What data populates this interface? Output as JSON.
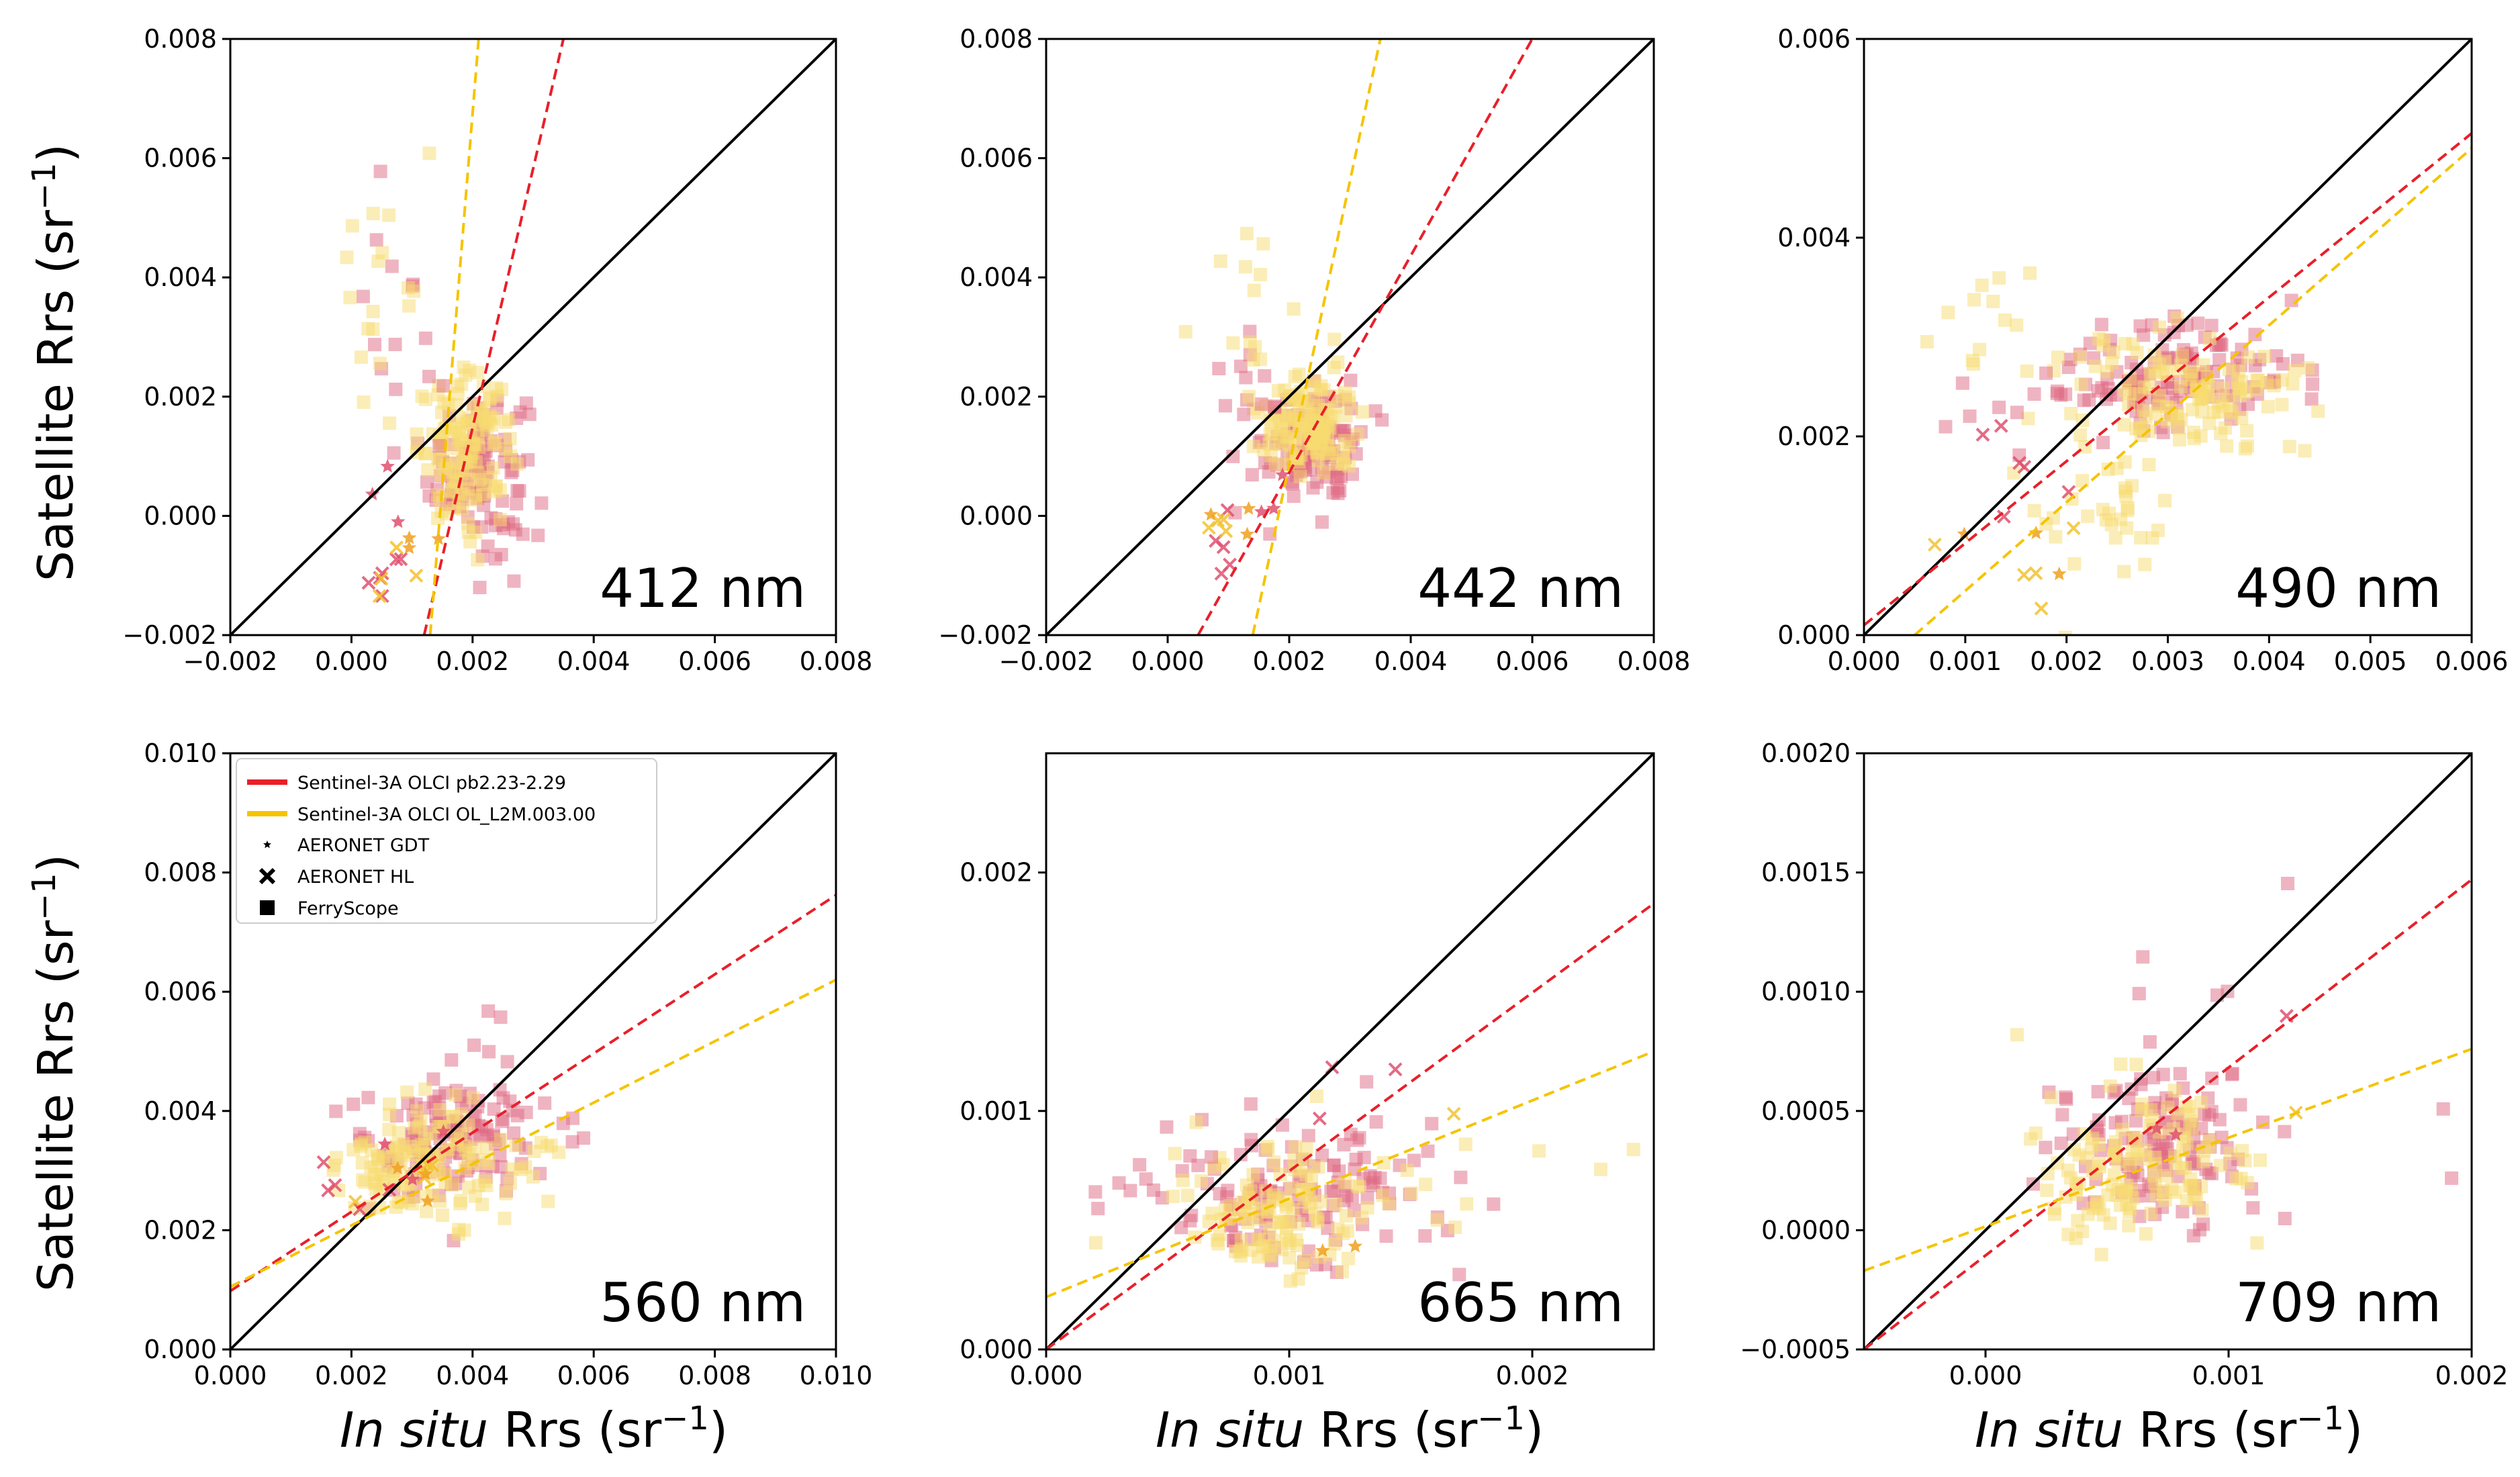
{
  "colors": {
    "red": "#e8202a",
    "yellow": "#f5c400",
    "red_point": "#e06a84",
    "yellow_point": "#f7dc6f",
    "identity": "#000000"
  },
  "labels": {
    "ylabel_main": "Satellite Rrs (sr",
    "ylabel_sup": "−1",
    "ylabel_close": ")",
    "xlabel_italic": "In situ",
    "xlabel_main": " Rrs (sr",
    "xlabel_sup": "−1",
    "xlabel_close": ")"
  },
  "legend": {
    "placement": "top-left of the 560 nm panel",
    "entries": [
      {
        "label": "Sentinel-3A OLCI pb2.23-2.29",
        "symbol": "line",
        "color": "#e8202a"
      },
      {
        "label": "Sentinel-3A OLCI OL_L2M.003.00",
        "symbol": "line",
        "color": "#f5c400"
      },
      {
        "label": "AERONET GDT",
        "symbol": "star",
        "color": "#000000"
      },
      {
        "label": "AERONET HL",
        "symbol": "x",
        "color": "#000000"
      },
      {
        "label": "FerryScope",
        "symbol": "square",
        "color": "#000000"
      }
    ]
  },
  "chart_data": [
    {
      "type": "scatter",
      "wavelength": "412 nm",
      "xlim": [
        -0.002,
        0.008
      ],
      "ylim": [
        -0.002,
        0.008
      ],
      "xticks": [
        "−0.002",
        "0.000",
        "0.002",
        "0.004",
        "0.006",
        "0.008"
      ],
      "xtick_values": [
        -0.002,
        0,
        0.002,
        0.004,
        0.006,
        0.008
      ],
      "yticks": [
        "−0.002",
        "0.000",
        "0.002",
        "0.004",
        "0.006",
        "0.008"
      ],
      "ytick_values": [
        -0.002,
        0,
        0.002,
        0.004,
        0.006,
        0.008
      ],
      "show_ylabel": true,
      "show_xlabel": false,
      "fit_lines": [
        {
          "name": "Sentinel-3A OLCI pb2.23-2.29",
          "color": "#e8202a",
          "x": [
            0.0012,
            0.0035
          ],
          "y": [
            -0.002,
            0.008
          ]
        },
        {
          "name": "Sentinel-3A OLCI OL_L2M.003.00",
          "color": "#f5c400",
          "x": [
            0.0013,
            0.0021
          ],
          "y": [
            -0.002,
            0.008
          ]
        }
      ],
      "clusters": [
        {
          "source": "FerryScope",
          "product": "pb",
          "cx": 0.0021,
          "cy": 0.0008,
          "sx": 0.0004,
          "sy": 0.0007,
          "n": 110
        },
        {
          "source": "FerryScope",
          "product": "ol",
          "cx": 0.0019,
          "cy": 0.0011,
          "sx": 0.0004,
          "sy": 0.0006,
          "n": 130
        },
        {
          "source": "FerryScope",
          "product": "pb",
          "cx": 0.0007,
          "cy": 0.0028,
          "sx": 0.0004,
          "sy": 0.001,
          "n": 14
        },
        {
          "source": "FerryScope",
          "product": "ol",
          "cx": 0.0006,
          "cy": 0.0035,
          "sx": 0.0004,
          "sy": 0.0012,
          "n": 18
        },
        {
          "source": "AERONET HL",
          "product": "pb",
          "cx": 0.0006,
          "cy": -0.0009,
          "sx": 0.0003,
          "sy": 0.0004,
          "n": 6
        },
        {
          "source": "AERONET HL",
          "product": "ol",
          "cx": 0.0005,
          "cy": -0.0007,
          "sx": 0.0003,
          "sy": 0.0004,
          "n": 4
        },
        {
          "source": "AERONET GDT",
          "product": "pb",
          "cx": 0.0012,
          "cy": 0.0002,
          "sx": 0.0004,
          "sy": 0.0005,
          "n": 3
        },
        {
          "source": "AERONET GDT",
          "product": "ol",
          "cx": 0.0008,
          "cy": -0.0004,
          "sx": 0.0003,
          "sy": 0.0003,
          "n": 3
        }
      ]
    },
    {
      "type": "scatter",
      "wavelength": "442 nm",
      "xlim": [
        -0.002,
        0.008
      ],
      "ylim": [
        -0.002,
        0.008
      ],
      "xticks": [
        "−0.002",
        "0.000",
        "0.002",
        "0.004",
        "0.006",
        "0.008"
      ],
      "xtick_values": [
        -0.002,
        0,
        0.002,
        0.004,
        0.006,
        0.008
      ],
      "yticks": [
        "−0.002",
        "0.000",
        "0.002",
        "0.004",
        "0.006",
        "0.008"
      ],
      "ytick_values": [
        -0.002,
        0,
        0.002,
        0.004,
        0.006,
        0.008
      ],
      "show_ylabel": false,
      "show_xlabel": false,
      "fit_lines": [
        {
          "name": "Sentinel-3A OLCI pb2.23-2.29",
          "color": "#e8202a",
          "x": [
            0.0005,
            0.006
          ],
          "y": [
            -0.002,
            0.008
          ]
        },
        {
          "name": "Sentinel-3A OLCI OL_L2M.003.00",
          "color": "#f5c400",
          "x": [
            0.0014,
            0.0035
          ],
          "y": [
            -0.002,
            0.008
          ]
        }
      ],
      "clusters": [
        {
          "source": "FerryScope",
          "product": "pb",
          "cx": 0.0024,
          "cy": 0.0012,
          "sx": 0.0004,
          "sy": 0.0005,
          "n": 110
        },
        {
          "source": "FerryScope",
          "product": "ol",
          "cx": 0.0023,
          "cy": 0.0015,
          "sx": 0.0004,
          "sy": 0.0004,
          "n": 130
        },
        {
          "source": "FerryScope",
          "product": "pb",
          "cx": 0.0013,
          "cy": 0.0025,
          "sx": 0.0004,
          "sy": 0.0008,
          "n": 12
        },
        {
          "source": "FerryScope",
          "product": "ol",
          "cx": 0.0014,
          "cy": 0.0032,
          "sx": 0.0005,
          "sy": 0.001,
          "n": 16
        },
        {
          "source": "AERONET HL",
          "product": "pb",
          "cx": 0.0009,
          "cy": -0.0005,
          "sx": 0.0002,
          "sy": 0.0003,
          "n": 5
        },
        {
          "source": "AERONET HL",
          "product": "ol",
          "cx": 0.0009,
          "cy": -0.0004,
          "sx": 0.0002,
          "sy": 0.0003,
          "n": 4
        },
        {
          "source": "AERONET GDT",
          "product": "pb",
          "cx": 0.0016,
          "cy": 0.0002,
          "sx": 0.0003,
          "sy": 0.0004,
          "n": 3
        },
        {
          "source": "AERONET GDT",
          "product": "ol",
          "cx": 0.0012,
          "cy": -0.0001,
          "sx": 0.0003,
          "sy": 0.0003,
          "n": 3
        }
      ]
    },
    {
      "type": "scatter",
      "wavelength": "490 nm",
      "xlim": [
        0,
        0.006
      ],
      "ylim": [
        0,
        0.006
      ],
      "xticks": [
        "0.000",
        "0.001",
        "0.002",
        "0.003",
        "0.004",
        "0.005",
        "0.006"
      ],
      "xtick_values": [
        0,
        0.001,
        0.002,
        0.003,
        0.004,
        0.005,
        0.006
      ],
      "yticks": [
        "0.000",
        "0.002",
        "0.004",
        "0.006"
      ],
      "ytick_values": [
        0,
        0.002,
        0.004,
        0.006
      ],
      "show_ylabel": false,
      "show_xlabel": false,
      "fit_lines": [
        {
          "name": "Sentinel-3A OLCI pb2.23-2.29",
          "color": "#e8202a",
          "x": [
            0,
            0.006
          ],
          "y": [
            0.0001,
            0.00505
          ]
        },
        {
          "name": "Sentinel-3A OLCI OL_L2M.003.00",
          "color": "#f5c400",
          "x": [
            0.0005,
            0.006
          ],
          "y": [
            0,
            0.0049
          ]
        }
      ],
      "clusters": [
        {
          "source": "FerryScope",
          "product": "pb",
          "cx": 0.0031,
          "cy": 0.0026,
          "sx": 0.0006,
          "sy": 0.0003,
          "n": 130
        },
        {
          "source": "FerryScope",
          "product": "ol",
          "cx": 0.0032,
          "cy": 0.0024,
          "sx": 0.0006,
          "sy": 0.0003,
          "n": 120
        },
        {
          "source": "FerryScope",
          "product": "ol",
          "cx": 0.0024,
          "cy": 0.0013,
          "sx": 0.0004,
          "sy": 0.0004,
          "n": 35
        },
        {
          "source": "FerryScope",
          "product": "ol",
          "cx": 0.0015,
          "cy": 0.0031,
          "sx": 0.0004,
          "sy": 0.0004,
          "n": 14
        },
        {
          "source": "FerryScope",
          "product": "pb",
          "cx": 0.0013,
          "cy": 0.0023,
          "sx": 0.0003,
          "sy": 0.0003,
          "n": 8
        },
        {
          "source": "AERONET HL",
          "product": "pb",
          "cx": 0.0015,
          "cy": 0.0017,
          "sx": 0.0003,
          "sy": 0.0005,
          "n": 6
        },
        {
          "source": "AERONET HL",
          "product": "ol",
          "cx": 0.0014,
          "cy": 0.0008,
          "sx": 0.0003,
          "sy": 0.0004,
          "n": 5
        },
        {
          "source": "AERONET GDT",
          "product": "ol",
          "cx": 0.0016,
          "cy": 0.0011,
          "sx": 0.0003,
          "sy": 0.0003,
          "n": 3
        }
      ]
    },
    {
      "type": "scatter",
      "wavelength": "560 nm",
      "xlim": [
        0,
        0.01
      ],
      "ylim": [
        0,
        0.01
      ],
      "xticks": [
        "0.000",
        "0.002",
        "0.004",
        "0.006",
        "0.008",
        "0.010"
      ],
      "xtick_values": [
        0,
        0.002,
        0.004,
        0.006,
        0.008,
        0.01
      ],
      "yticks": [
        "0.000",
        "0.002",
        "0.004",
        "0.006",
        "0.008",
        "0.010"
      ],
      "ytick_values": [
        0,
        0.002,
        0.004,
        0.006,
        0.008,
        0.01
      ],
      "show_ylabel": true,
      "show_xlabel": true,
      "show_legend": true,
      "fit_lines": [
        {
          "name": "Sentinel-3A OLCI pb2.23-2.29",
          "color": "#e8202a",
          "x": [
            0,
            0.01
          ],
          "y": [
            0.00098,
            0.00762
          ]
        },
        {
          "name": "Sentinel-3A OLCI OL_L2M.003.00",
          "color": "#f5c400",
          "x": [
            0,
            0.01
          ],
          "y": [
            0.00105,
            0.0062
          ]
        }
      ],
      "clusters": [
        {
          "source": "FerryScope",
          "product": "pb",
          "cx": 0.0036,
          "cy": 0.0035,
          "sx": 0.0008,
          "sy": 0.0005,
          "n": 130
        },
        {
          "source": "FerryScope",
          "product": "ol",
          "cx": 0.0033,
          "cy": 0.0031,
          "sx": 0.0008,
          "sy": 0.0005,
          "n": 140
        },
        {
          "source": "FerryScope",
          "product": "pb",
          "cx": 0.0041,
          "cy": 0.0051,
          "sx": 0.0003,
          "sy": 0.0003,
          "n": 6
        },
        {
          "source": "AERONET HL",
          "product": "pb",
          "cx": 0.0024,
          "cy": 0.0029,
          "sx": 0.0005,
          "sy": 0.0004,
          "n": 5
        },
        {
          "source": "AERONET HL",
          "product": "ol",
          "cx": 0.003,
          "cy": 0.0031,
          "sx": 0.0005,
          "sy": 0.0004,
          "n": 4
        },
        {
          "source": "AERONET GDT",
          "product": "pb",
          "cx": 0.003,
          "cy": 0.0034,
          "sx": 0.0004,
          "sy": 0.0003,
          "n": 3
        },
        {
          "source": "AERONET GDT",
          "product": "ol",
          "cx": 0.0027,
          "cy": 0.0027,
          "sx": 0.0004,
          "sy": 0.0003,
          "n": 3
        }
      ]
    },
    {
      "type": "scatter",
      "wavelength": "665 nm",
      "xlim": [
        0,
        0.0025
      ],
      "ylim": [
        0,
        0.0025
      ],
      "xticks": [
        "0.000",
        "0.001",
        "0.002"
      ],
      "xtick_values": [
        0,
        0.001,
        0.002
      ],
      "yticks": [
        "0.000",
        "0.001",
        "0.002"
      ],
      "ytick_values": [
        0,
        0.001,
        0.002
      ],
      "show_ylabel": false,
      "show_xlabel": true,
      "fit_lines": [
        {
          "name": "Sentinel-3A OLCI pb2.23-2.29",
          "color": "#e8202a",
          "x": [
            0,
            0.0025
          ],
          "y": [
            0,
            0.00187
          ]
        },
        {
          "name": "Sentinel-3A OLCI OL_L2M.003.00",
          "color": "#f5c400",
          "x": [
            0,
            0.0025
          ],
          "y": [
            0.00022,
            0.00125
          ]
        }
      ],
      "clusters": [
        {
          "source": "FerryScope",
          "product": "pb",
          "cx": 0.00105,
          "cy": 0.00068,
          "sx": 0.00027,
          "sy": 0.00017,
          "n": 120
        },
        {
          "source": "FerryScope",
          "product": "ol",
          "cx": 0.00098,
          "cy": 0.00058,
          "sx": 0.00027,
          "sy": 0.00015,
          "n": 130
        },
        {
          "source": "FerryScope",
          "product": "pb",
          "cx": 0.00035,
          "cy": 0.00068,
          "sx": 0.00015,
          "sy": 8e-05,
          "n": 8
        },
        {
          "source": "FerryScope",
          "product": "ol",
          "cx": 0.0021,
          "cy": 0.00095,
          "sx": 0.00015,
          "sy": 0.0001,
          "n": 3
        },
        {
          "source": "AERONET HL",
          "product": "pb",
          "cx": 0.0012,
          "cy": 0.0011,
          "sx": 0.0003,
          "sy": 0.00015,
          "n": 3
        },
        {
          "source": "AERONET HL",
          "product": "ol",
          "cx": 0.0017,
          "cy": 0.001,
          "sx": 5e-05,
          "sy": 5e-05,
          "n": 1
        },
        {
          "source": "AERONET GDT",
          "product": "ol",
          "cx": 0.0011,
          "cy": 0.00045,
          "sx": 0.0001,
          "sy": 0.0001,
          "n": 2
        }
      ]
    },
    {
      "type": "scatter",
      "wavelength": "709 nm",
      "xlim": [
        -0.0005,
        0.002
      ],
      "ylim": [
        -0.0005,
        0.002
      ],
      "xticks": [
        "0.000",
        "0.001",
        "0.002"
      ],
      "xtick_values": [
        0,
        0.001,
        0.002
      ],
      "yticks": [
        "−0.0005",
        "0.0000",
        "0.0005",
        "0.0010",
        "0.0015",
        "0.0020"
      ],
      "ytick_values": [
        -0.0005,
        0,
        0.0005,
        0.001,
        0.0015,
        0.002
      ],
      "show_ylabel": false,
      "show_xlabel": true,
      "fit_lines": [
        {
          "name": "Sentinel-3A OLCI pb2.23-2.29",
          "color": "#e8202a",
          "x": [
            -0.0005,
            0.002
          ],
          "y": [
            -0.0005,
            0.00147
          ]
        },
        {
          "name": "Sentinel-3A OLCI OL_L2M.003.00",
          "color": "#f5c400",
          "x": [
            -0.0005,
            0.002
          ],
          "y": [
            -0.00017,
            0.00076
          ]
        }
      ],
      "clusters": [
        {
          "source": "FerryScope",
          "product": "pb",
          "cx": 0.00068,
          "cy": 0.00037,
          "sx": 0.00022,
          "sy": 0.00017,
          "n": 120
        },
        {
          "source": "FerryScope",
          "product": "ol",
          "cx": 0.00062,
          "cy": 0.00028,
          "sx": 0.00022,
          "sy": 0.00015,
          "n": 130
        },
        {
          "source": "FerryScope",
          "product": "pb",
          "cx": 0.00085,
          "cy": 0.00095,
          "sx": 0.00015,
          "sy": 0.0002,
          "n": 8
        },
        {
          "source": "FerryScope",
          "product": "pb",
          "cx": 0.0019,
          "cy": 0.00052,
          "sx": 3e-05,
          "sy": 0.0001,
          "n": 2
        },
        {
          "source": "AERONET HL",
          "product": "pb",
          "cx": 0.00128,
          "cy": 0.00088,
          "sx": 3e-05,
          "sy": 3e-05,
          "n": 1
        },
        {
          "source": "AERONET HL",
          "product": "ol",
          "cx": 0.00128,
          "cy": 0.0006,
          "sx": 3e-05,
          "sy": 3e-05,
          "n": 1
        },
        {
          "source": "AERONET GDT",
          "product": "pb",
          "cx": 0.0007,
          "cy": 0.0004,
          "sx": 0.0001,
          "sy": 0.0001,
          "n": 2
        }
      ]
    }
  ]
}
